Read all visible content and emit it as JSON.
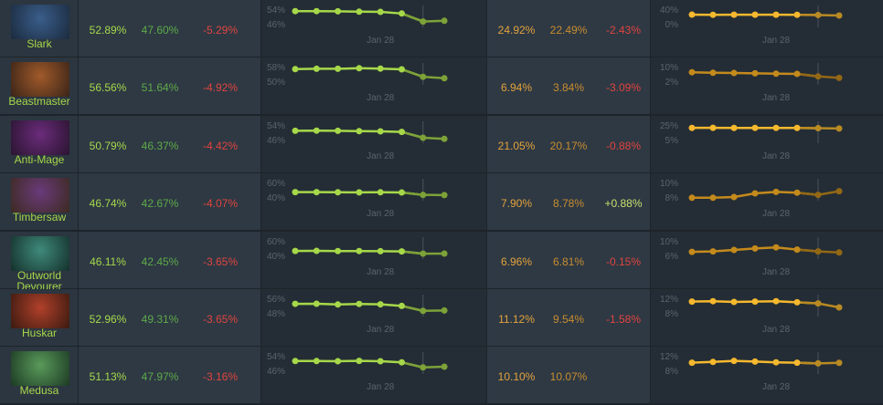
{
  "rows": [
    {
      "hero": "Slark",
      "win_rate": "52.89%",
      "win_rate_prev": "47.60%",
      "win_change": "-5.29%",
      "win_trend": {
        "type": "line",
        "x": [
          null,
          null,
          null,
          null,
          "Jan 28",
          null,
          null,
          null
        ],
        "values": [
          52.9,
          52.9,
          52.8,
          52.6,
          52.5,
          51.6,
          47.2,
          47.6
        ],
        "yticks": [
          {
            "value": 54,
            "label": "54%"
          },
          {
            "value": 46,
            "label": "46%"
          }
        ],
        "color": "#a6d84a"
      },
      "pick_rate": "24.92%",
      "pick_rate_prev": "22.49%",
      "pick_change": "-2.43%",
      "pick_trend": {
        "type": "line",
        "x": [
          null,
          null,
          null,
          null,
          "Jan 28",
          null,
          null,
          null
        ],
        "values": [
          24.9,
          24.5,
          24.7,
          24.6,
          24.6,
          24.5,
          23.9,
          22.5
        ],
        "yticks": [
          {
            "value": 40,
            "label": "40%"
          },
          {
            "value": 0,
            "label": "0%"
          }
        ],
        "color": "#f5b82e"
      }
    },
    {
      "hero": "Beastmaster",
      "win_rate": "56.56%",
      "win_rate_prev": "51.64%",
      "win_change": "-4.92%",
      "win_trend": {
        "type": "line",
        "x": [
          null,
          null,
          null,
          null,
          "Jan 28",
          null,
          null,
          null
        ],
        "values": [
          56.6,
          56.8,
          56.8,
          57.1,
          56.9,
          56.5,
          52.4,
          51.6
        ],
        "yticks": [
          {
            "value": 58,
            "label": "58%"
          },
          {
            "value": 50,
            "label": "50%"
          }
        ],
        "color": "#a6d84a"
      },
      "pick_rate": "6.94%",
      "pick_rate_prev": "3.84%",
      "pick_change": "-3.09%",
      "pick_trend": {
        "type": "line",
        "x": [
          null,
          null,
          null,
          null,
          "Jan 28",
          null,
          null,
          null
        ],
        "values": [
          6.9,
          6.6,
          6.5,
          6.3,
          6.1,
          6.0,
          4.6,
          3.8
        ],
        "yticks": [
          {
            "value": 10,
            "label": "10%"
          },
          {
            "value": 2,
            "label": "2%"
          }
        ],
        "color": "#c48a1c"
      }
    },
    {
      "hero": "Anti-Mage",
      "win_rate": "50.79%",
      "win_rate_prev": "46.37%",
      "win_change": "-4.42%",
      "win_trend": {
        "type": "line",
        "x": [
          null,
          null,
          null,
          null,
          "Jan 28",
          null,
          null,
          null
        ],
        "values": [
          50.8,
          50.9,
          50.8,
          50.6,
          50.5,
          50.2,
          47.0,
          46.4
        ],
        "yticks": [
          {
            "value": 54,
            "label": "54%"
          },
          {
            "value": 46,
            "label": "46%"
          }
        ],
        "color": "#a6d84a"
      },
      "pick_rate": "21.05%",
      "pick_rate_prev": "20.17%",
      "pick_change": "-0.88%",
      "pick_trend": {
        "type": "line",
        "x": [
          null,
          null,
          null,
          null,
          "Jan 28",
          null,
          null,
          null
        ],
        "values": [
          21.0,
          21.1,
          20.9,
          21.0,
          21.0,
          20.9,
          20.6,
          20.2
        ],
        "yticks": [
          {
            "value": 25,
            "label": "25%"
          },
          {
            "value": 5,
            "label": "5%"
          }
        ],
        "color": "#f5b82e"
      }
    },
    {
      "hero": "Timbersaw",
      "win_rate": "46.74%",
      "win_rate_prev": "42.67%",
      "win_change": "-4.07%",
      "win_trend": {
        "type": "line",
        "x": [
          null,
          null,
          null,
          null,
          "Jan 28",
          null,
          null,
          null
        ],
        "values": [
          46.7,
          46.7,
          46.5,
          46.4,
          46.5,
          46.2,
          42.9,
          42.7
        ],
        "yticks": [
          {
            "value": 60,
            "label": "60%"
          },
          {
            "value": 40,
            "label": "40%"
          }
        ],
        "color": "#a6d84a"
      },
      "pick_rate": "7.90%",
      "pick_rate_prev": "8.78%",
      "pick_change": "+0.88%",
      "pick_trend": {
        "type": "line",
        "x": [
          null,
          null,
          null,
          null,
          "Jan 28",
          null,
          null,
          null
        ],
        "values": [
          7.9,
          7.9,
          8.0,
          8.5,
          8.7,
          8.6,
          8.3,
          8.8
        ],
        "yticks": [
          {
            "value": 10,
            "label": "10%"
          },
          {
            "value": 8,
            "label": "8%"
          }
        ],
        "color": "#c48a1c"
      }
    },
    {
      "hero": "Outworld Devourer",
      "win_rate": "46.11%",
      "win_rate_prev": "42.45%",
      "win_change": "-3.65%",
      "win_trend": {
        "type": "line",
        "x": [
          null,
          null,
          null,
          null,
          "Jan 28",
          null,
          null,
          null
        ],
        "values": [
          46.1,
          46.2,
          46.0,
          46.0,
          45.8,
          45.5,
          42.4,
          42.5
        ],
        "yticks": [
          {
            "value": 60,
            "label": "60%"
          },
          {
            "value": 40,
            "label": "40%"
          }
        ],
        "color": "#a6d84a"
      },
      "pick_rate": "6.96%",
      "pick_rate_prev": "6.81%",
      "pick_change": "-0.15%",
      "pick_trend": {
        "type": "line",
        "x": [
          null,
          null,
          null,
          null,
          "Jan 28",
          null,
          null,
          null
        ],
        "values": [
          6.96,
          7.1,
          7.5,
          7.9,
          8.2,
          7.6,
          7.1,
          6.8
        ],
        "yticks": [
          {
            "value": 10,
            "label": "10%"
          },
          {
            "value": 6,
            "label": "6%"
          }
        ],
        "color": "#c48a1c"
      }
    },
    {
      "hero": "Huskar",
      "win_rate": "52.96%",
      "win_rate_prev": "49.31%",
      "win_change": "-3.65%",
      "win_trend": {
        "type": "line",
        "x": [
          null,
          null,
          null,
          null,
          "Jan 28",
          null,
          null,
          null
        ],
        "values": [
          52.96,
          53.0,
          52.6,
          52.9,
          52.7,
          51.8,
          49.1,
          49.3
        ],
        "yticks": [
          {
            "value": 56,
            "label": "56%"
          },
          {
            "value": 48,
            "label": "48%"
          }
        ],
        "color": "#a6d84a"
      },
      "pick_rate": "11.12%",
      "pick_rate_prev": "9.54%",
      "pick_change": "-1.58%",
      "pick_trend": {
        "type": "line",
        "x": [
          null,
          null,
          null,
          null,
          "Jan 28",
          null,
          null,
          null
        ],
        "values": [
          11.1,
          11.2,
          11.0,
          11.1,
          11.2,
          10.9,
          10.6,
          9.5
        ],
        "yticks": [
          {
            "value": 12,
            "label": "12%"
          },
          {
            "value": 8,
            "label": "8%"
          }
        ],
        "color": "#f5b82e"
      }
    },
    {
      "hero": "Medusa",
      "win_rate": "51.13%",
      "win_rate_prev": "47.97%",
      "win_change": "-3.16%",
      "win_trend": {
        "type": "line",
        "x": [
          null,
          null,
          null,
          null,
          "Jan 28",
          null,
          null,
          null
        ],
        "values": [
          51.1,
          51.1,
          51.0,
          51.2,
          51.0,
          50.4,
          47.6,
          47.97
        ],
        "yticks": [
          {
            "value": 54,
            "label": "54%"
          },
          {
            "value": 46,
            "label": "46%"
          }
        ],
        "color": "#a6d84a"
      },
      "pick_rate": "10.10%",
      "pick_rate_prev": "10.07%",
      "pick_trend": {
        "type": "line",
        "x": [
          null,
          null,
          null,
          null,
          "Jan 28",
          null,
          null,
          null
        ],
        "values": [
          10.1,
          10.3,
          10.6,
          10.4,
          10.2,
          10.1,
          9.9,
          10.07
        ],
        "yticks": [
          {
            "value": 12,
            "label": "12%"
          },
          {
            "value": 8,
            "label": "8%"
          }
        ],
        "color": "#f5b82e"
      }
    }
  ]
}
